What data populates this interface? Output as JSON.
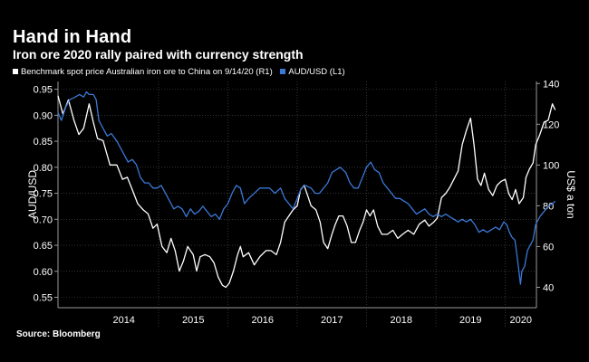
{
  "header": {
    "title": "Hand in Hand",
    "subtitle": "Iron ore 2020 rally paired with currency strength"
  },
  "legend": [
    {
      "label": "Benchmark spot price Australian iron ore to China on 9/14/20 (R1)",
      "color": "#ffffff"
    },
    {
      "label": "AUD/USD  (L1)",
      "color": "#3a78d6"
    }
  ],
  "footer": {
    "source": "Source: Bloomberg"
  },
  "chart_data": {
    "type": "line",
    "title": "Hand in Hand",
    "subtitle": "Iron ore 2020 rally paired with currency strength",
    "x_range": [
      2013.55,
      2020.45
    ],
    "x_tick_labels": [
      "2014",
      "2015",
      "2016",
      "2017",
      "2018",
      "2019",
      "2020"
    ],
    "y_left": {
      "label": "AUD/USD",
      "range": [
        0.53,
        0.965
      ],
      "ticks": [
        "0.95",
        "0.90",
        "0.85",
        "0.80",
        "0.75",
        "0.70",
        "0.65",
        "0.60",
        "0.55"
      ],
      "tick_values": [
        0.95,
        0.9,
        0.85,
        0.8,
        0.75,
        0.7,
        0.65,
        0.6,
        0.55
      ]
    },
    "y_right": {
      "label": "US$ a ton",
      "range": [
        30,
        141
      ],
      "ticks": [
        "140",
        "120",
        "100",
        "80",
        "60",
        "40"
      ],
      "tick_values": [
        140,
        120,
        100,
        80,
        60,
        40
      ]
    },
    "series": [
      {
        "name": "Benchmark spot price Australian iron ore to China on 9/14/20 (R1)",
        "axis": "right",
        "color": "#ffffff",
        "points": [
          [
            2013.55,
            134
          ],
          [
            2013.62,
            125
          ],
          [
            2013.7,
            132
          ],
          [
            2013.78,
            122
          ],
          [
            2013.85,
            115
          ],
          [
            2013.92,
            118
          ],
          [
            2014.0,
            130
          ],
          [
            2014.06,
            121
          ],
          [
            2014.12,
            113
          ],
          [
            2014.2,
            112
          ],
          [
            2014.3,
            100
          ],
          [
            2014.4,
            100
          ],
          [
            2014.48,
            93
          ],
          [
            2014.55,
            94
          ],
          [
            2014.62,
            88
          ],
          [
            2014.7,
            81
          ],
          [
            2014.78,
            78
          ],
          [
            2014.85,
            76
          ],
          [
            2014.92,
            69
          ],
          [
            2014.98,
            71
          ],
          [
            2015.05,
            60
          ],
          [
            2015.12,
            57
          ],
          [
            2015.18,
            64
          ],
          [
            2015.24,
            58
          ],
          [
            2015.3,
            48
          ],
          [
            2015.36,
            53
          ],
          [
            2015.42,
            60
          ],
          [
            2015.5,
            56
          ],
          [
            2015.55,
            48
          ],
          [
            2015.6,
            55
          ],
          [
            2015.67,
            56
          ],
          [
            2015.74,
            55
          ],
          [
            2015.8,
            52
          ],
          [
            2015.86,
            45
          ],
          [
            2015.92,
            41
          ],
          [
            2015.97,
            40
          ],
          [
            2016.02,
            42
          ],
          [
            2016.08,
            48
          ],
          [
            2016.14,
            56
          ],
          [
            2016.18,
            60
          ],
          [
            2016.22,
            55
          ],
          [
            2016.3,
            57
          ],
          [
            2016.38,
            51
          ],
          [
            2016.46,
            55
          ],
          [
            2016.55,
            58
          ],
          [
            2016.62,
            58
          ],
          [
            2016.7,
            56
          ],
          [
            2016.76,
            62
          ],
          [
            2016.82,
            72
          ],
          [
            2016.88,
            75
          ],
          [
            2016.94,
            78
          ],
          [
            2017.0,
            80
          ],
          [
            2017.05,
            88
          ],
          [
            2017.1,
            90
          ],
          [
            2017.15,
            85
          ],
          [
            2017.2,
            80
          ],
          [
            2017.27,
            78
          ],
          [
            2017.33,
            72
          ],
          [
            2017.38,
            62
          ],
          [
            2017.44,
            59
          ],
          [
            2017.5,
            66
          ],
          [
            2017.55,
            71
          ],
          [
            2017.6,
            75
          ],
          [
            2017.66,
            75
          ],
          [
            2017.72,
            70
          ],
          [
            2017.78,
            62
          ],
          [
            2017.84,
            62
          ],
          [
            2017.9,
            68
          ],
          [
            2017.95,
            72
          ],
          [
            2018.0,
            78
          ],
          [
            2018.05,
            75
          ],
          [
            2018.1,
            78
          ],
          [
            2018.16,
            70
          ],
          [
            2018.22,
            66
          ],
          [
            2018.3,
            66
          ],
          [
            2018.38,
            68
          ],
          [
            2018.45,
            64
          ],
          [
            2018.52,
            66
          ],
          [
            2018.6,
            68
          ],
          [
            2018.68,
            66
          ],
          [
            2018.76,
            71
          ],
          [
            2018.84,
            73
          ],
          [
            2018.9,
            70
          ],
          [
            2018.97,
            72
          ],
          [
            2019.02,
            74
          ],
          [
            2019.08,
            84
          ],
          [
            2019.14,
            86
          ],
          [
            2019.2,
            89
          ],
          [
            2019.26,
            93
          ],
          [
            2019.32,
            97
          ],
          [
            2019.38,
            110
          ],
          [
            2019.44,
            117
          ],
          [
            2019.5,
            123
          ],
          [
            2019.55,
            110
          ],
          [
            2019.6,
            93
          ],
          [
            2019.65,
            90
          ],
          [
            2019.7,
            96
          ],
          [
            2019.76,
            88
          ],
          [
            2019.82,
            85
          ],
          [
            2019.88,
            90
          ],
          [
            2019.94,
            92
          ],
          [
            2020.0,
            93
          ],
          [
            2020.05,
            86
          ],
          [
            2020.1,
            83
          ],
          [
            2020.15,
            88
          ],
          [
            2020.2,
            81
          ],
          [
            2020.26,
            84
          ],
          [
            2020.3,
            94
          ],
          [
            2020.35,
            98
          ],
          [
            2020.4,
            101
          ],
          [
            2020.44,
            110
          ],
          [
            2020.5,
            115
          ],
          [
            2020.56,
            121
          ],
          [
            2020.62,
            122
          ],
          [
            2020.68,
            130
          ],
          [
            2020.72,
            127
          ]
        ]
      },
      {
        "name": "AUD/USD  (L1)",
        "axis": "left",
        "color": "#3a78d6",
        "points": [
          [
            2013.55,
            0.905
          ],
          [
            2013.6,
            0.89
          ],
          [
            2013.66,
            0.915
          ],
          [
            2013.72,
            0.93
          ],
          [
            2013.8,
            0.935
          ],
          [
            2013.86,
            0.94
          ],
          [
            2013.92,
            0.935
          ],
          [
            2013.96,
            0.945
          ],
          [
            2014.0,
            0.94
          ],
          [
            2014.06,
            0.94
          ],
          [
            2014.1,
            0.93
          ],
          [
            2014.14,
            0.89
          ],
          [
            2014.2,
            0.875
          ],
          [
            2014.26,
            0.86
          ],
          [
            2014.32,
            0.865
          ],
          [
            2014.4,
            0.85
          ],
          [
            2014.48,
            0.83
          ],
          [
            2014.56,
            0.81
          ],
          [
            2014.62,
            0.815
          ],
          [
            2014.68,
            0.805
          ],
          [
            2014.74,
            0.78
          ],
          [
            2014.8,
            0.77
          ],
          [
            2014.86,
            0.77
          ],
          [
            2014.92,
            0.76
          ],
          [
            2014.98,
            0.76
          ],
          [
            2015.04,
            0.765
          ],
          [
            2015.1,
            0.75
          ],
          [
            2015.16,
            0.735
          ],
          [
            2015.22,
            0.72
          ],
          [
            2015.28,
            0.725
          ],
          [
            2015.34,
            0.72
          ],
          [
            2015.4,
            0.705
          ],
          [
            2015.46,
            0.72
          ],
          [
            2015.52,
            0.71
          ],
          [
            2015.58,
            0.715
          ],
          [
            2015.64,
            0.725
          ],
          [
            2015.7,
            0.715
          ],
          [
            2015.76,
            0.705
          ],
          [
            2015.82,
            0.71
          ],
          [
            2015.88,
            0.7
          ],
          [
            2015.94,
            0.72
          ],
          [
            2016.0,
            0.73
          ],
          [
            2016.06,
            0.75
          ],
          [
            2016.12,
            0.765
          ],
          [
            2016.18,
            0.76
          ],
          [
            2016.24,
            0.73
          ],
          [
            2016.3,
            0.74
          ],
          [
            2016.38,
            0.75
          ],
          [
            2016.46,
            0.76
          ],
          [
            2016.52,
            0.76
          ],
          [
            2016.6,
            0.76
          ],
          [
            2016.68,
            0.75
          ],
          [
            2016.76,
            0.76
          ],
          [
            2016.82,
            0.74
          ],
          [
            2016.88,
            0.73
          ],
          [
            2016.94,
            0.72
          ],
          [
            2017.0,
            0.74
          ],
          [
            2017.06,
            0.76
          ],
          [
            2017.12,
            0.765
          ],
          [
            2017.2,
            0.76
          ],
          [
            2017.26,
            0.75
          ],
          [
            2017.32,
            0.75
          ],
          [
            2017.38,
            0.76
          ],
          [
            2017.44,
            0.77
          ],
          [
            2017.5,
            0.79
          ],
          [
            2017.56,
            0.795
          ],
          [
            2017.62,
            0.8
          ],
          [
            2017.7,
            0.79
          ],
          [
            2017.76,
            0.77
          ],
          [
            2017.82,
            0.76
          ],
          [
            2017.88,
            0.76
          ],
          [
            2017.94,
            0.78
          ],
          [
            2018.0,
            0.8
          ],
          [
            2018.06,
            0.81
          ],
          [
            2018.12,
            0.795
          ],
          [
            2018.18,
            0.79
          ],
          [
            2018.24,
            0.77
          ],
          [
            2018.3,
            0.76
          ],
          [
            2018.36,
            0.75
          ],
          [
            2018.42,
            0.74
          ],
          [
            2018.48,
            0.74
          ],
          [
            2018.54,
            0.735
          ],
          [
            2018.6,
            0.73
          ],
          [
            2018.66,
            0.72
          ],
          [
            2018.72,
            0.71
          ],
          [
            2018.78,
            0.715
          ],
          [
            2018.84,
            0.72
          ],
          [
            2018.9,
            0.71
          ],
          [
            2018.96,
            0.705
          ],
          [
            2019.02,
            0.71
          ],
          [
            2019.08,
            0.705
          ],
          [
            2019.14,
            0.71
          ],
          [
            2019.2,
            0.705
          ],
          [
            2019.26,
            0.7
          ],
          [
            2019.32,
            0.695
          ],
          [
            2019.38,
            0.7
          ],
          [
            2019.44,
            0.695
          ],
          [
            2019.5,
            0.7
          ],
          [
            2019.56,
            0.69
          ],
          [
            2019.62,
            0.675
          ],
          [
            2019.68,
            0.68
          ],
          [
            2019.74,
            0.675
          ],
          [
            2019.8,
            0.68
          ],
          [
            2019.86,
            0.685
          ],
          [
            2019.92,
            0.68
          ],
          [
            2019.98,
            0.695
          ],
          [
            2020.02,
            0.69
          ],
          [
            2020.06,
            0.675
          ],
          [
            2020.1,
            0.665
          ],
          [
            2020.14,
            0.66
          ],
          [
            2020.18,
            0.62
          ],
          [
            2020.22,
            0.575
          ],
          [
            2020.24,
            0.6
          ],
          [
            2020.28,
            0.61
          ],
          [
            2020.32,
            0.64
          ],
          [
            2020.36,
            0.65
          ],
          [
            2020.4,
            0.66
          ],
          [
            2020.44,
            0.69
          ],
          [
            2020.5,
            0.705
          ],
          [
            2020.56,
            0.715
          ],
          [
            2020.62,
            0.725
          ],
          [
            2020.68,
            0.73
          ],
          [
            2020.72,
            0.735
          ]
        ]
      }
    ]
  }
}
